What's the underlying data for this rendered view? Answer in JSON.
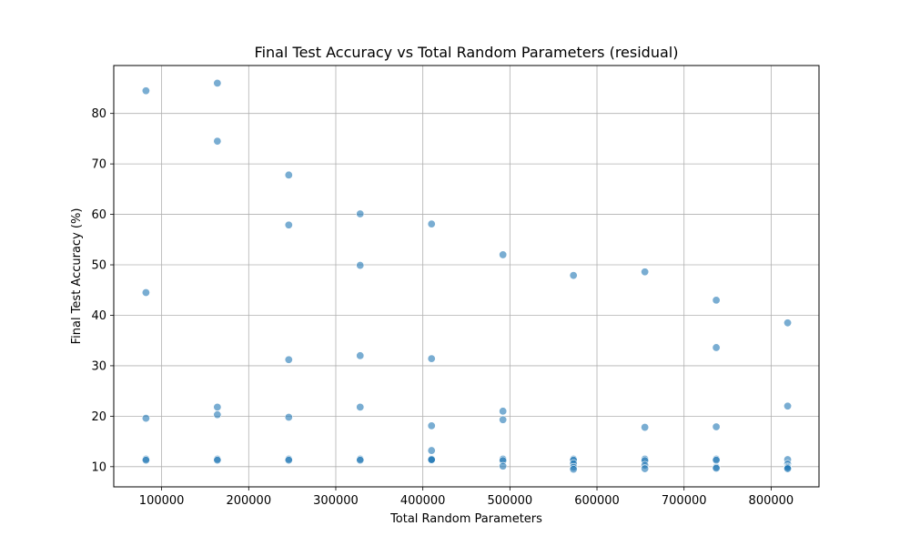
{
  "chart_data": {
    "type": "scatter",
    "title": "Final Test Accuracy vs Total Random Parameters (residual)",
    "xlabel": "Total Random Parameters",
    "ylabel": "Final Test Accuracy (%)",
    "xlim": [
      45000,
      855000
    ],
    "ylim": [
      6,
      89.5
    ],
    "xticks": [
      100000,
      200000,
      300000,
      400000,
      500000,
      600000,
      700000,
      800000
    ],
    "xtick_labels": [
      "100000",
      "200000",
      "300000",
      "400000",
      "500000",
      "600000",
      "700000",
      "800000"
    ],
    "yticks": [
      10,
      20,
      30,
      40,
      50,
      60,
      70,
      80
    ],
    "ytick_labels": [
      "10",
      "20",
      "30",
      "40",
      "50",
      "60",
      "70",
      "80"
    ],
    "grid": true,
    "marker_color": "#1f77b4",
    "marker_alpha": 0.6,
    "series": [
      {
        "x": [
          82000,
          82000,
          82000,
          82000,
          82000,
          164000,
          164000,
          164000,
          164000,
          164000,
          164000,
          246000,
          246000,
          246000,
          246000,
          246000,
          246000,
          328000,
          328000,
          328000,
          328000,
          328000,
          328000,
          410000,
          410000,
          410000,
          410000,
          410000,
          410000,
          410000,
          492000,
          492000,
          492000,
          492000,
          492000,
          492000,
          573000,
          573000,
          573000,
          573000,
          573000,
          573000,
          655000,
          655000,
          655000,
          655000,
          655000,
          655000,
          737000,
          737000,
          737000,
          737000,
          737000,
          737000,
          737000,
          819000,
          819000,
          819000,
          819000,
          819000,
          819000,
          819000
        ],
        "y": [
          84.5,
          44.5,
          19.6,
          11.5,
          11.3,
          86.0,
          74.5,
          21.8,
          20.3,
          11.5,
          11.3,
          67.8,
          57.9,
          31.2,
          19.8,
          11.5,
          11.3,
          60.1,
          49.9,
          32.0,
          21.8,
          11.5,
          11.3,
          58.1,
          31.4,
          18.1,
          13.2,
          11.5,
          11.3,
          11.4,
          52.0,
          21.0,
          19.3,
          11.5,
          11.2,
          10.1,
          47.9,
          11.5,
          11.3,
          10.6,
          9.9,
          9.5,
          48.6,
          17.8,
          11.5,
          11.2,
          10.3,
          9.6,
          43.0,
          33.6,
          17.9,
          11.5,
          11.3,
          9.9,
          9.7,
          38.5,
          22.0,
          11.4,
          10.5,
          10.0,
          9.8,
          9.6
        ]
      }
    ]
  }
}
